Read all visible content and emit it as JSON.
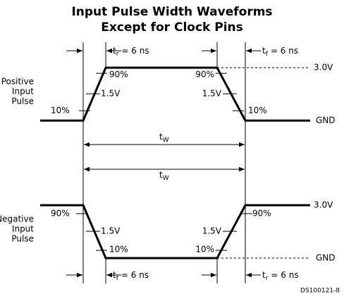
{
  "title": [
    "Input Pulse Width Waveforms",
    "Except for Clock Pins"
  ],
  "positive": {
    "label": [
      "Positive",
      "Input",
      "Pulse"
    ],
    "rise_low": "10%",
    "rise_mid": "1.5V",
    "rise_high": "90%",
    "fall_high": "90%",
    "fall_mid": "1.5V",
    "fall_low": "10%",
    "rise_time": {
      "symbol": "t",
      "subscript": "r",
      "text": "= 6 ns"
    },
    "fall_time": {
      "symbol": "t",
      "subscript": "f",
      "text": "= 6 ns"
    },
    "high_level": "3.0V",
    "low_level": "GND",
    "width": {
      "symbol": "t",
      "subscript": "W"
    }
  },
  "negative": {
    "label": [
      "Negative",
      "Input",
      "Pulse"
    ],
    "fall_high": "90%",
    "fall_mid": "1.5V",
    "fall_low": "10%",
    "rise_low": "10%",
    "rise_mid": "1.5V",
    "rise_high": "90%",
    "fall_time": {
      "symbol": "t",
      "subscript": "f",
      "text": "= 6 ns"
    },
    "rise_time": {
      "symbol": "t",
      "subscript": "r",
      "text": "= 6 ns"
    },
    "high_level": "3.0V",
    "low_level": "GND",
    "width": {
      "symbol": "t",
      "subscript": "W"
    }
  },
  "figure_id": "DS100121-8"
}
